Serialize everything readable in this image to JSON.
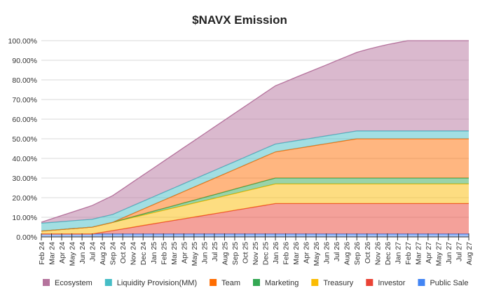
{
  "chart_data": {
    "type": "area",
    "stacked": true,
    "title": "$NAVX Emission",
    "xlabel": "",
    "ylabel": "",
    "ylim": [
      0,
      100
    ],
    "y_tick_labels": [
      "0.00%",
      "10.00%",
      "20.00%",
      "30.00%",
      "40.00%",
      "50.00%",
      "60.00%",
      "70.00%",
      "80.00%",
      "90.00%",
      "100.00%"
    ],
    "grid": true,
    "legend_position": "bottom",
    "categories": [
      "Feb 24",
      "Mar 24",
      "Apr 24",
      "May 24",
      "Jun 24",
      "Jul 24",
      "Aug 24",
      "Sep 24",
      "Oct 24",
      "Nov 24",
      "Dec 24",
      "Jan 25",
      "Feb 25",
      "Mar 25",
      "Apr 25",
      "May 25",
      "Jun 25",
      "Jul 25",
      "Aug 25",
      "Sep 25",
      "Oct 25",
      "Nov 25",
      "Dec 25",
      "Jan 26",
      "Feb 26",
      "Mar 26",
      "Apr 26",
      "May 26",
      "Jun 26",
      "Jul 26",
      "Aug 26",
      "Sep 26",
      "Oct 26",
      "Nov 26",
      "Dec 26",
      "Jan 27",
      "Feb 27",
      "Mar 27",
      "Apr 27",
      "May 27",
      "Jun 27",
      "Jul 27",
      "Aug 27"
    ],
    "legend_order": [
      "Ecosystem",
      "Liquidity Provision(MM)",
      "Team",
      "Marketing",
      "Treasury",
      "Investor",
      "Public Sale"
    ],
    "series": [
      {
        "name": "Public Sale",
        "color": "#4285f4",
        "values": [
          1.5,
          1.5,
          1.5,
          1.5,
          1.5,
          1.5,
          1.5,
          1.5,
          1.5,
          1.5,
          1.5,
          1.5,
          1.5,
          1.5,
          1.5,
          1.5,
          1.5,
          1.5,
          1.5,
          1.5,
          1.5,
          1.5,
          1.5,
          1.5,
          1.5,
          1.5,
          1.5,
          1.5,
          1.5,
          1.5,
          1.5,
          1.5,
          1.5,
          1.5,
          1.5,
          1.5,
          1.5,
          1.5,
          1.5,
          1.5,
          1.5,
          1.5,
          1.5
        ]
      },
      {
        "name": "Investor",
        "color": "#ea4335",
        "values": [
          0,
          0,
          0,
          0,
          0,
          0,
          0.86,
          1.72,
          2.58,
          3.44,
          4.31,
          5.17,
          6.03,
          6.89,
          7.75,
          8.61,
          9.47,
          10.33,
          11.19,
          12.06,
          12.92,
          13.78,
          14.64,
          15.5,
          15.5,
          15.5,
          15.5,
          15.5,
          15.5,
          15.5,
          15.5,
          15.5,
          15.5,
          15.5,
          15.5,
          15.5,
          15.5,
          15.5,
          15.5,
          15.5,
          15.5,
          15.5,
          15.5
        ]
      },
      {
        "name": "Treasury",
        "color": "#fbbc04",
        "values": [
          1.5,
          1.9,
          2.3,
          2.7,
          3.1,
          3.5,
          3.86,
          4.22,
          4.58,
          4.94,
          5.31,
          5.67,
          6.03,
          6.39,
          6.75,
          7.11,
          7.47,
          7.83,
          8.19,
          8.56,
          8.92,
          9.28,
          9.64,
          10,
          10,
          10,
          10,
          10,
          10,
          10,
          10,
          10,
          10,
          10,
          10,
          10,
          10,
          10,
          10,
          10,
          10,
          10,
          10
        ]
      },
      {
        "name": "Marketing",
        "color": "#34a853",
        "values": [
          0,
          0,
          0,
          0,
          0,
          0,
          0,
          0,
          0.19,
          0.38,
          0.56,
          0.75,
          0.94,
          1.13,
          1.31,
          1.5,
          1.69,
          1.88,
          2.06,
          2.25,
          2.44,
          2.63,
          2.81,
          3,
          3,
          3,
          3,
          3,
          3,
          3,
          3,
          3,
          3,
          3,
          3,
          3,
          3,
          3,
          3,
          3,
          3,
          3,
          3
        ]
      },
      {
        "name": "Team",
        "color": "#ff6d01",
        "values": [
          0,
          0,
          0,
          0,
          0,
          0,
          0,
          0,
          0.83,
          1.67,
          2.5,
          3.33,
          4.17,
          5,
          5.83,
          6.67,
          7.5,
          8.33,
          9.17,
          10,
          10.83,
          11.67,
          12.5,
          13.33,
          14.17,
          15,
          15.83,
          16.67,
          17.5,
          18.33,
          19.17,
          20,
          20,
          20,
          20,
          20,
          20,
          20,
          20,
          20,
          20,
          20,
          20
        ]
      },
      {
        "name": "Liquidity Provision(MM)",
        "color": "#46bdc6",
        "values": [
          4,
          4,
          4,
          4,
          4,
          4,
          4,
          4,
          4,
          4,
          4,
          4,
          4,
          4,
          4,
          4,
          4,
          4,
          4,
          4,
          4,
          4,
          4,
          4,
          4,
          4,
          4,
          4,
          4,
          4,
          4,
          4,
          4,
          4,
          4,
          4,
          4,
          4,
          4,
          4,
          4,
          4,
          4
        ]
      },
      {
        "name": "Ecosystem",
        "color": "#b5739d",
        "values": [
          0.5,
          1.8,
          3.1,
          4.4,
          5.7,
          7.0,
          8.28,
          9.56,
          10.82,
          12.07,
          13.32,
          14.58,
          15.83,
          17.09,
          18.36,
          19.61,
          20.87,
          22.13,
          23.39,
          24.63,
          25.89,
          27.14,
          28.41,
          29.67,
          30.93,
          32.3,
          33.57,
          34.83,
          36.1,
          37.47,
          38.73,
          40,
          41.5,
          42.8,
          44,
          45,
          46,
          46,
          46,
          46,
          46,
          46,
          46
        ]
      }
    ]
  }
}
